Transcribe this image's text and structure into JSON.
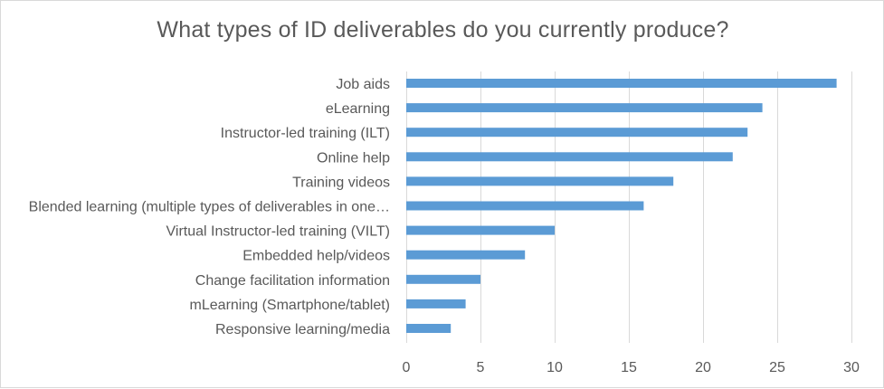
{
  "chart_data": {
    "type": "bar",
    "orientation": "horizontal",
    "title": "What types of ID deliverables do you currently produce?",
    "categories": [
      "Job aids",
      "eLearning",
      "Instructor-led training (ILT)",
      "Online help",
      "Training  videos",
      "Blended learning (multiple types of deliverables in one…",
      "Virtual Instructor-led training (VILT)",
      "Embedded help/videos",
      "Change facilitation information",
      "mLearning (Smartphone/tablet)",
      "Responsive learning/media"
    ],
    "values": [
      29,
      24,
      23,
      22,
      18,
      16,
      10,
      8,
      5,
      4,
      3
    ],
    "xlim": [
      0,
      30
    ],
    "xticks": [
      0,
      5,
      10,
      15,
      20,
      25,
      30
    ],
    "grid": "vertical",
    "legend": "none",
    "bar_color": "#5b9bd5",
    "grid_color": "#d9d9d9"
  }
}
